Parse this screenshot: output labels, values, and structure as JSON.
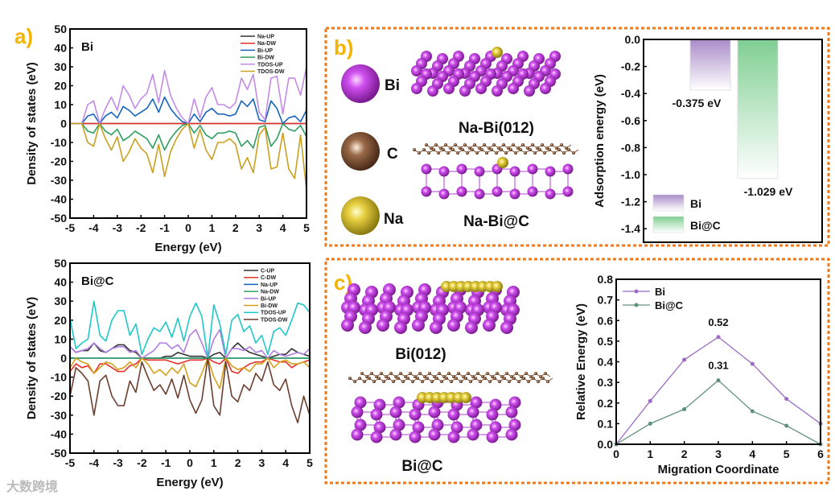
{
  "panel_labels": {
    "a": "a)",
    "b": "b)",
    "c": "c)"
  },
  "atom_legend": [
    {
      "label": "Bi",
      "color": "#c040e0"
    },
    {
      "label": "C",
      "color": "#8a5a3c"
    },
    {
      "label": "Na",
      "color": "#d8c030"
    }
  ],
  "structure_labels": {
    "na_bi_012": "Na-Bi(012)",
    "na_bi_c": "Na-Bi@C",
    "bi_012": "Bi(012)",
    "bi_c": "Bi@C"
  },
  "watermark": "大数跨境",
  "chart_data": [
    {
      "id": "dos-bi",
      "type": "line",
      "title": "Bi",
      "xlabel": "Energy (eV)",
      "ylabel": "Density of states (eV)",
      "xlim": [
        -5,
        5
      ],
      "ylim": [
        -50,
        50
      ],
      "xticks": [
        -5,
        -4,
        -3,
        -2,
        -1,
        0,
        1,
        2,
        3,
        4,
        5
      ],
      "yticks": [
        50,
        40,
        30,
        20,
        10,
        0,
        -10,
        -20,
        -30,
        -40,
        -50
      ],
      "x_start": -5,
      "x_step": 0.25,
      "legend_position": "top-right",
      "series": [
        {
          "name": "Na-UP",
          "color": "#333333",
          "y": 0
        },
        {
          "name": "Na-DW",
          "color": "#e8302a",
          "y": 0
        },
        {
          "name": "Bi-UP",
          "color": "#1565c0",
          "y": [
            0,
            0,
            0,
            4,
            5,
            0,
            4,
            6,
            3,
            9,
            7,
            4,
            6,
            8,
            13,
            6,
            14,
            8,
            4,
            1,
            0,
            5,
            1,
            6,
            8,
            5,
            5,
            4,
            5,
            12,
            9,
            13,
            2,
            1,
            12,
            8,
            0,
            3,
            4,
            1,
            7
          ]
        },
        {
          "name": "Bi-DW",
          "color": "#2e9e5e",
          "y": [
            0,
            0,
            0,
            -4,
            -5,
            0,
            -4,
            -6,
            -3,
            -9,
            -7,
            -4,
            -6,
            -8,
            -13,
            -6,
            -14,
            -8,
            -4,
            -1,
            0,
            -5,
            -1,
            -6,
            -8,
            -5,
            -5,
            -4,
            -5,
            -12,
            -9,
            -13,
            -2,
            -1,
            -12,
            -8,
            0,
            -3,
            -4,
            -1,
            -7
          ]
        },
        {
          "name": "TDOS-UP",
          "color": "#c38be8",
          "y": [
            0,
            0,
            0,
            10,
            12,
            0,
            8,
            14,
            7,
            20,
            15,
            8,
            13,
            16,
            26,
            11,
            28,
            15,
            8,
            3,
            0,
            13,
            3,
            14,
            19,
            10,
            10,
            8,
            11,
            24,
            18,
            26,
            6,
            2,
            24,
            25,
            5,
            24,
            24,
            15,
            30
          ]
        },
        {
          "name": "TDOS-DW",
          "color": "#c9a020",
          "y": [
            0,
            0,
            0,
            -10,
            -12,
            0,
            -8,
            -14,
            -7,
            -20,
            -15,
            -8,
            -13,
            -16,
            -26,
            -11,
            -28,
            -15,
            -8,
            -3,
            0,
            -13,
            -3,
            -14,
            -19,
            -10,
            -10,
            -8,
            -11,
            -24,
            -18,
            -26,
            -6,
            -2,
            -24,
            -23,
            -5,
            -24,
            -29,
            -6,
            -35
          ]
        }
      ]
    },
    {
      "id": "dos-bic",
      "type": "line",
      "title": "Bi@C",
      "xlabel": "Energy (eV)",
      "ylabel": "Density of states (eV)",
      "xlim": [
        -5,
        5
      ],
      "ylim": [
        -50,
        50
      ],
      "xticks": [
        -5,
        -4,
        -3,
        -2,
        -1,
        0,
        1,
        2,
        3,
        4,
        5
      ],
      "yticks": [
        50,
        40,
        30,
        20,
        10,
        0,
        -10,
        -20,
        -30,
        -40,
        -50
      ],
      "x_start": -5,
      "x_step": 0.25,
      "legend_position": "top-right",
      "series": [
        {
          "name": "C-UP",
          "color": "#333333",
          "y": [
            6,
            3,
            4,
            4,
            8,
            4,
            3,
            5,
            7,
            7,
            4,
            3,
            0,
            0,
            0,
            0,
            1,
            1,
            3,
            2,
            1,
            1,
            1,
            0,
            2,
            3,
            0,
            5,
            8,
            5,
            3,
            2,
            1,
            0,
            1,
            2,
            2,
            5,
            3,
            2,
            1
          ]
        },
        {
          "name": "C-DW",
          "color": "#e8302a",
          "y": [
            -7,
            -3,
            -5,
            -4,
            -8,
            -3,
            -3,
            -5,
            -7,
            -7,
            -4,
            -3,
            0,
            -1,
            -1,
            -1,
            -1,
            -2,
            -3,
            -2,
            -1,
            -1,
            -1,
            0,
            -2,
            -3,
            0,
            -7,
            -8,
            -5,
            -3,
            -2,
            -2,
            0,
            -1,
            -2,
            -2,
            -5,
            -3,
            -2,
            -1
          ]
        },
        {
          "name": "Na-UP",
          "color": "#1565c0",
          "y": 0
        },
        {
          "name": "Na-DW",
          "color": "#2e9e5e",
          "y": 0
        },
        {
          "name": "Bi-UP",
          "color": "#b07ee0",
          "y": [
            6,
            3,
            4,
            5,
            8,
            5,
            3,
            5,
            6,
            6,
            3,
            4,
            0,
            2,
            4,
            8,
            8,
            5,
            7,
            3,
            12,
            15,
            8,
            0,
            10,
            15,
            0,
            5,
            5,
            4,
            6,
            3,
            4,
            0,
            4,
            2,
            1,
            2,
            3,
            2,
            5
          ]
        },
        {
          "name": "Bi-DW",
          "color": "#d4a017",
          "y": [
            -5,
            0,
            -2,
            -3,
            -8,
            -5,
            -2,
            -3,
            -6,
            -5,
            -2,
            -5,
            0,
            -3,
            -8,
            -6,
            -9,
            -5,
            -8,
            -3,
            -13,
            -15,
            -8,
            0,
            -10,
            -16,
            0,
            -4,
            -6,
            -5,
            -7,
            -3,
            -3,
            0,
            -5,
            -2,
            -1,
            -3,
            -3,
            -2,
            -5
          ]
        },
        {
          "name": "TDOS-UP",
          "color": "#1fc8c8",
          "y": [
            21,
            5,
            8,
            10,
            30,
            12,
            9,
            20,
            25,
            25,
            12,
            18,
            2,
            10,
            16,
            14,
            19,
            11,
            21,
            9,
            22,
            29,
            22,
            0,
            28,
            18,
            2,
            20,
            23,
            14,
            17,
            8,
            12,
            2,
            14,
            16,
            12,
            20,
            29,
            28,
            24
          ]
        },
        {
          "name": "TDOS-DW",
          "color": "#6b3e2e",
          "y": [
            -20,
            -5,
            -8,
            -12,
            -30,
            -12,
            -9,
            -20,
            -25,
            -25,
            -12,
            -18,
            -2,
            -10,
            -17,
            -14,
            -19,
            -11,
            -21,
            -9,
            -22,
            -29,
            -22,
            0,
            -25,
            -30,
            -2,
            -20,
            -23,
            -14,
            -17,
            -8,
            -12,
            -2,
            -14,
            -17,
            -11,
            -25,
            -34,
            -20,
            -30
          ]
        }
      ]
    },
    {
      "id": "adsorption",
      "type": "bar",
      "ylabel": "Adsorption energy (eV)",
      "ylim": [
        -1.5,
        0
      ],
      "yticks": [
        0.0,
        -0.2,
        -0.4,
        -0.6,
        -0.8,
        -1.0,
        -1.2,
        -1.4
      ],
      "categories": [
        "Bi",
        "Bi@C"
      ],
      "values": [
        -0.375,
        -1.029
      ],
      "data_labels": [
        "-0.375 eV",
        "-1.029 eV"
      ],
      "colors": [
        "#a98bc9",
        "#7fcf92"
      ],
      "legend_position": "bottom-left"
    },
    {
      "id": "migration",
      "type": "line",
      "xlabel": "Migration Coordinate",
      "ylabel": "Relative Energy (eV)",
      "xlim": [
        0,
        6
      ],
      "ylim": [
        0,
        0.8
      ],
      "xticks": [
        0,
        1,
        2,
        3,
        4,
        5,
        6
      ],
      "yticks": [
        0.0,
        0.1,
        0.2,
        0.3,
        0.4,
        0.5,
        0.6,
        0.7,
        0.8
      ],
      "x": [
        0,
        1,
        2,
        3,
        4,
        5,
        6
      ],
      "legend_position": "top-left",
      "series": [
        {
          "name": "Bi",
          "color": "#9b6bc4",
          "y": [
            0,
            0.21,
            0.41,
            0.52,
            0.39,
            0.22,
            0.1
          ]
        },
        {
          "name": "Bi@C",
          "color": "#5f927a",
          "y": [
            0,
            0.1,
            0.17,
            0.31,
            0.16,
            0.09,
            0.0
          ]
        }
      ],
      "annotations": [
        "0.52",
        "0.31"
      ]
    }
  ]
}
